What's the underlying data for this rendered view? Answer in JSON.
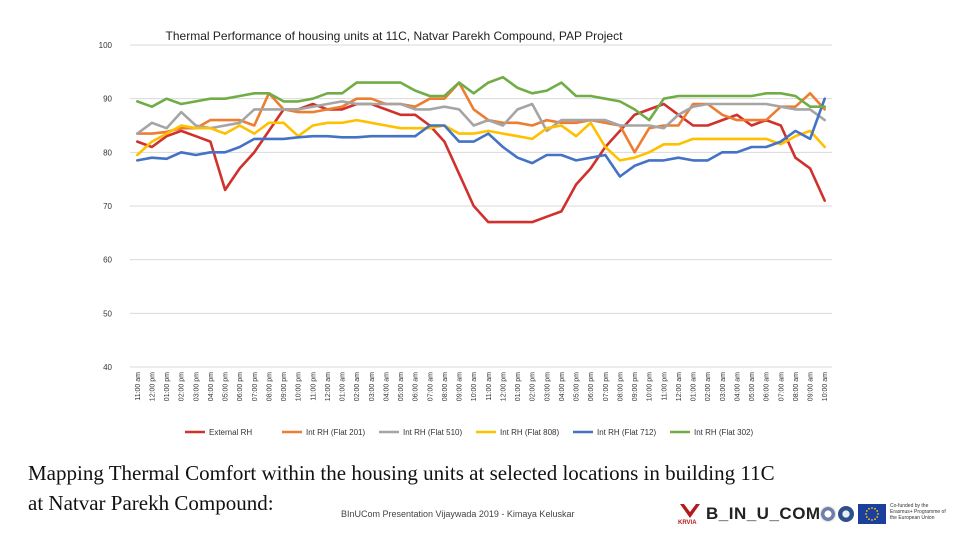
{
  "chart_data": {
    "type": "line",
    "title": "Thermal Performance of housing units at 11C, Natvar Parekh Compound, PAP Project",
    "xlabel": "",
    "ylabel": "",
    "ylim": [
      40,
      100
    ],
    "yticks": [
      40,
      50,
      60,
      70,
      80,
      90,
      100
    ],
    "grid": true,
    "legend_position": "bottom",
    "x": [
      "11:00 am",
      "12:00 pm",
      "01:00 pm",
      "02:00 pm",
      "03:00 pm",
      "04:00 pm",
      "05:00 pm",
      "06:00 pm",
      "07:00 pm",
      "08:00 pm",
      "09:00 pm",
      "10:00 pm",
      "11:00 pm",
      "12:00 am",
      "01:00 am",
      "02:00 am",
      "03:00 am",
      "04:00 am",
      "05:00 am",
      "06:00 am",
      "07:00 am",
      "08:00 am",
      "09:00 am",
      "10:00 am",
      "11:00 am",
      "12:00 pm",
      "01:00 pm",
      "02:00 pm",
      "03:00 pm",
      "04:00 pm",
      "05:00 pm",
      "06:00 pm",
      "07:00 pm",
      "08:00 pm",
      "09:00 pm",
      "10:00 pm",
      "11:00 pm",
      "12:00 am",
      "01:00 am",
      "02:00 am",
      "03:00 am",
      "04:00 am",
      "05:00 am",
      "06:00 am",
      "07:00 am",
      "08:00 am",
      "09:00 am",
      "10:00 am"
    ],
    "series": [
      {
        "name": "External RH",
        "color": "#d0312d",
        "values": [
          82,
          81,
          83,
          84,
          83,
          82,
          73,
          77,
          80,
          84,
          88,
          88,
          89,
          88,
          88,
          89,
          89,
          88,
          87,
          87,
          85,
          82,
          76,
          70,
          67,
          67,
          67,
          67,
          68,
          69,
          74,
          77,
          81,
          84,
          87,
          88,
          89,
          87,
          85,
          85,
          86,
          87,
          85,
          86,
          85,
          79,
          77,
          71
        ]
      },
      {
        "name": "Int RH (Flat 201)",
        "color": "#ed7d31",
        "values": [
          83.5,
          83.5,
          83.8,
          84.5,
          84.5,
          86,
          86,
          86,
          85,
          91,
          88,
          87.5,
          87.5,
          88,
          88.5,
          90,
          90,
          89,
          89,
          88.5,
          90,
          90,
          93,
          88,
          86,
          85.5,
          85.5,
          85,
          86,
          85.5,
          85.5,
          86,
          85.5,
          85,
          80,
          84.5,
          85,
          85,
          89,
          89,
          87,
          86,
          86,
          86,
          88.5,
          88.5,
          91,
          88
        ]
      },
      {
        "name": "Int RH (Flat 510)",
        "color": "#a5a5a5",
        "values": [
          83.5,
          85.5,
          84.5,
          87.5,
          85,
          84.5,
          85,
          85.5,
          88,
          88,
          88,
          88,
          88.5,
          89,
          89.5,
          89,
          89,
          89,
          89,
          88,
          88,
          88.5,
          88,
          85,
          86,
          85,
          88,
          89,
          84,
          86,
          86,
          86,
          86,
          85,
          85,
          85,
          84.5,
          87,
          88.5,
          89,
          89,
          89,
          89,
          89,
          88.5,
          88,
          88,
          86
        ]
      },
      {
        "name": "Int RH (Flat 808)",
        "color": "#ffc000",
        "values": [
          79.5,
          82,
          83.5,
          85,
          84.5,
          84.5,
          83.5,
          85,
          83.5,
          85.5,
          85.5,
          83,
          85,
          85.5,
          85.5,
          86,
          85.5,
          85,
          84.5,
          84.5,
          84.5,
          85,
          83.5,
          83.5,
          84,
          83.5,
          83,
          82.5,
          84.5,
          85,
          83,
          85.5,
          81,
          78.5,
          79,
          80,
          81.5,
          81.5,
          82.5,
          82.5,
          82.5,
          82.5,
          82.5,
          82.5,
          81.5,
          83,
          84,
          81
        ]
      },
      {
        "name": "Int RH (Flat 712)",
        "color": "#4472c4",
        "values": [
          78.5,
          79,
          78.8,
          80,
          79.5,
          80,
          80,
          81,
          82.5,
          82.5,
          82.5,
          82.8,
          83,
          83,
          82.8,
          82.8,
          83,
          83,
          83,
          83,
          85,
          85,
          82,
          82,
          83.5,
          81,
          79,
          78,
          79.5,
          79.5,
          78.5,
          79,
          79.5,
          75.5,
          77.5,
          78.5,
          78.5,
          79,
          78.5,
          78.5,
          80,
          80,
          81,
          81,
          82,
          84,
          82.5,
          90
        ]
      },
      {
        "name": "Int RH (Flat 302)",
        "color": "#70ad47",
        "values": [
          89.5,
          88.5,
          90,
          89,
          89.5,
          90,
          90,
          90.5,
          91,
          91,
          89.5,
          89.5,
          90,
          91,
          91,
          93,
          93,
          93,
          93,
          91.5,
          90.5,
          90.5,
          93,
          91,
          93,
          94,
          92,
          91,
          91.5,
          93,
          90.5,
          90.5,
          90,
          89.5,
          88,
          86,
          90,
          90.5,
          90.5,
          90.5,
          90.5,
          90.5,
          90.5,
          91,
          91,
          90.5,
          88.5,
          88.5
        ]
      }
    ]
  },
  "heading": {
    "line1": "Mapping Thermal Comfort within the housing units at selected locations in building 11C",
    "line2": "at Natvar Parekh Compound:"
  },
  "credit": "BInUCom Presentation Vijaywada 2019 - Kimaya Keluskar",
  "logos": {
    "krvia": "KRVIA",
    "binucom": "B_IN_U_COM",
    "eu_text": "Co-funded by the Erasmus+ Programme of the European Union"
  },
  "icons": [
    "krvia-logo-icon",
    "partner-logo-icon",
    "eu-flag-icon"
  ]
}
